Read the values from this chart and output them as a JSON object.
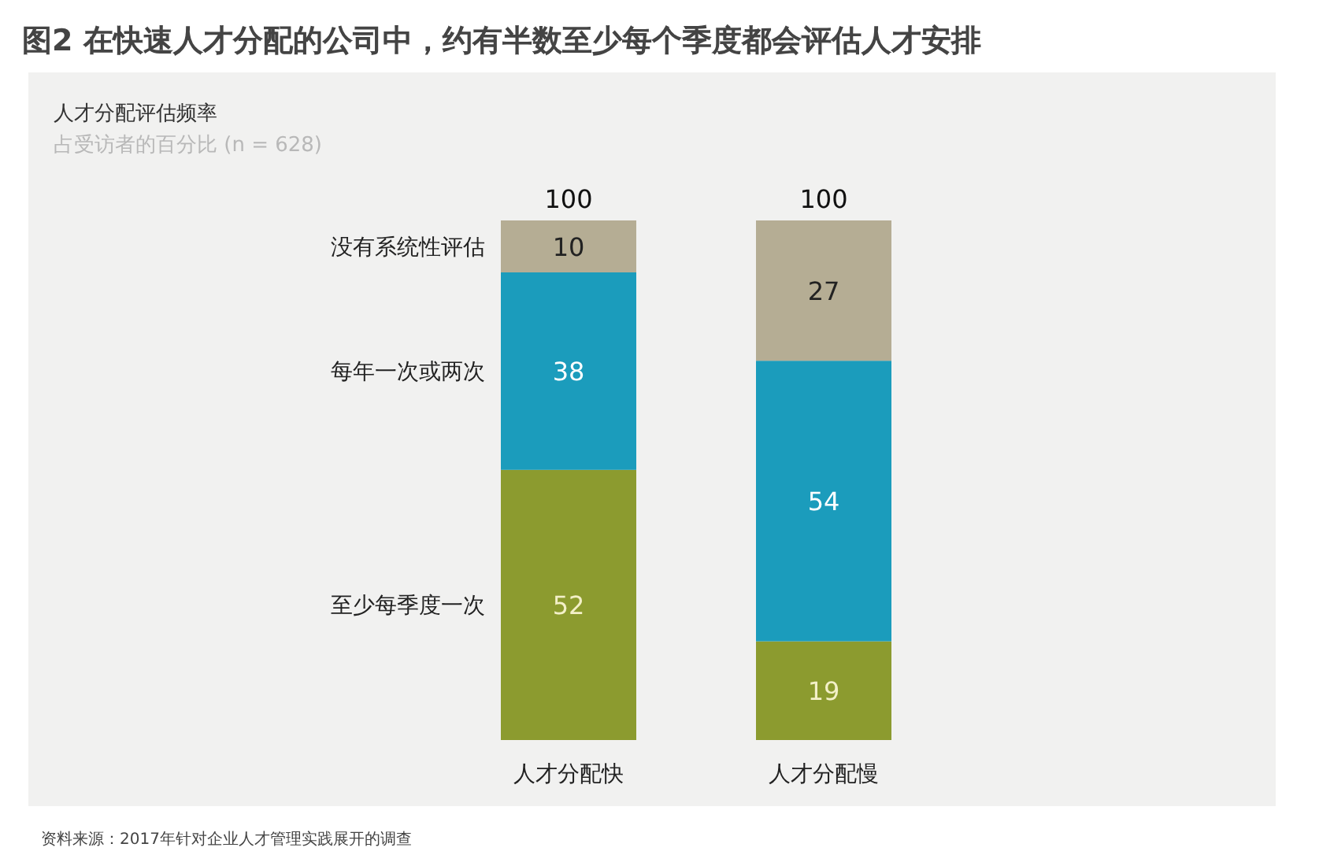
{
  "chart_data": {
    "type": "bar",
    "stacked": true,
    "title": "图2 在快速人才分配的公司中，约有半数至少每个季度都会评估人才安排",
    "subtitle": "人才分配评估频率",
    "categories": [
      "人才分配快",
      "人才分配慢"
    ],
    "series": [
      {
        "name": "至少每季度一次",
        "color": "#8c9b2f",
        "values": [
          52,
          19
        ]
      },
      {
        "name": "每年一次或两次",
        "color": "#1b9cbc",
        "values": [
          38,
          54
        ]
      },
      {
        "name": "没有系统性评估",
        "color": "#b5ad94",
        "values": [
          10,
          27
        ]
      }
    ],
    "data_labels": true,
    "totals": [
      "100",
      "100"
    ],
    "annotations": [
      "占受访者的百分比 (n = 628)",
      "资料来源：2017年针对企业人才管理实践展开的调查"
    ]
  }
}
